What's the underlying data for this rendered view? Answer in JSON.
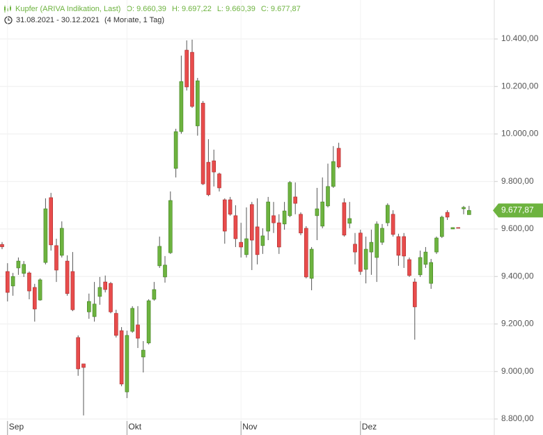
{
  "chart_data": {
    "type": "candlestick",
    "title": "Kupfer (ARIVA Indikation, Last)",
    "ohlc_labels": [
      "O: 9.660,39",
      "H: 9.697,22",
      "L: 9.660,39",
      "C: 9.677,87"
    ],
    "subtitle": "31.08.2021 - 30.12.2021",
    "period": "(4 Monate, 1 Tag)",
    "up_color": "#6db33f",
    "down_color": "#e84c4c",
    "open": [
      9535,
      9421,
      9360,
      9436,
      9413,
      9415,
      9354,
      9301,
      9459,
      9732,
      9530,
      9489,
      9465,
      9421,
      9143,
      9032,
      9251,
      9231,
      9316,
      9377,
      9371,
      9245,
      9172,
      8914,
      9169,
      9196,
      9061,
      9120,
      9304,
      9445,
      9398,
      9500,
      9855,
      10010,
      10353,
      10344,
      10034,
      10130,
      9881,
      9887,
      9832,
      9723,
      9723,
      9656,
      9544,
      9492,
      9703,
      9609,
      9530,
      9591,
      9656,
      9626,
      9621,
      9656,
      9735,
      9662,
      9603,
      9392,
      9656,
      9612,
      9697,
      9779,
      9940,
      9711,
      9624,
      9536,
      9583,
      9430,
      9503,
      9480,
      9544,
      9626,
      9662,
      9568,
      9568,
      9471,
      9377,
      9407,
      9451,
      9371,
      9503,
      9568,
      9670,
      9600,
      9606,
      9685,
      9660.39
    ],
    "high": [
      9545,
      9456,
      9415,
      9480,
      9465,
      9421,
      9369,
      9392,
      9729,
      9752,
      9559,
      9632,
      9489,
      9503,
      9152,
      9032,
      9328,
      9377,
      9398,
      9404,
      9377,
      9260,
      9187,
      9172,
      9275,
      9275,
      9128,
      9304,
      9377,
      9568,
      9486,
      9758,
      10022,
      10330,
      10394,
      10397,
      10236,
      10139,
      9978,
      9934,
      9837,
      9729,
      9735,
      9700,
      9626,
      9691,
      9714,
      9729,
      9603,
      9735,
      9714,
      9662,
      9714,
      9802,
      9796,
      9670,
      9612,
      9524,
      9773,
      9817,
      9875,
      9949,
      9963,
      9729,
      9714,
      9583,
      9597,
      9568,
      9597,
      9632,
      9621,
      9708,
      9679,
      9580,
      9583,
      9480,
      9392,
      9509,
      9524,
      9474,
      9568,
      9656,
      9679,
      9606,
      9606,
      9697,
      9697.22
    ],
    "low": [
      9515,
      9295,
      9319,
      9407,
      9398,
      9304,
      9210,
      9298,
      9451,
      9509,
      9377,
      9480,
      9319,
      9254,
      8982,
      8815,
      9222,
      9210,
      9281,
      9333,
      9245,
      9143,
      8938,
      8888,
      9163,
      9099,
      8996,
      9114,
      9298,
      9436,
      9374,
      9495,
      9817,
      10001,
      10183,
      10110,
      9993,
      9785,
      9738,
      9779,
      9758,
      9538,
      9656,
      9524,
      9480,
      9480,
      9427,
      9451,
      9495,
      9553,
      9583,
      9495,
      9597,
      9650,
      9662,
      9574,
      9392,
      9342,
      9553,
      9603,
      9691,
      9773,
      9855,
      9568,
      9603,
      9451,
      9407,
      9371,
      9407,
      9377,
      9533,
      9612,
      9568,
      9445,
      9436,
      9398,
      9134,
      9398,
      9436,
      9348,
      9495,
      9562,
      9638,
      9600,
      9603,
      9662,
      9660.39
    ],
    "close": [
      9525,
      9333,
      9400,
      9465,
      9451,
      9339,
      9263,
      9386,
      9685,
      9533,
      9427,
      9603,
      9328,
      9260,
      9011,
      9017,
      9295,
      9284,
      9354,
      9345,
      9251,
      9152,
      8947,
      9152,
      9266,
      9140,
      9090,
      9298,
      9345,
      9527,
      9448,
      9720,
      10010,
      10221,
      10198,
      10116,
      10224,
      9790,
      9744,
      9840,
      9773,
      9591,
      9662,
      9559,
      9524,
      9559,
      9553,
      9492,
      9571,
      9714,
      9626,
      9524,
      9676,
      9796,
      9708,
      9583,
      9398,
      9515,
      9685,
      9714,
      9779,
      9884,
      9861,
      9574,
      9644,
      9503,
      9421,
      9515,
      9544,
      9621,
      9603,
      9700,
      9577,
      9489,
      9486,
      9404,
      9272,
      9480,
      9503,
      9459,
      9562,
      9650,
      9650,
      9606,
      9603,
      9691,
      9677.87
    ],
    "xticks": [
      {
        "index": 1,
        "label": "Sep"
      },
      {
        "index": 23,
        "label": "Okt"
      },
      {
        "index": 44,
        "label": "Nov"
      },
      {
        "index": 66,
        "label": "Dez"
      }
    ],
    "ylim": [
      8800,
      10400
    ],
    "yticks": [
      {
        "value": 8800,
        "label": "8.800,00"
      },
      {
        "value": 9000,
        "label": "9.000,00"
      },
      {
        "value": 9200,
        "label": "9.200,00"
      },
      {
        "value": 9400,
        "label": "9.400,00"
      },
      {
        "value": 9600,
        "label": "9.600,00"
      },
      {
        "value": 9800,
        "label": "9.800,00"
      },
      {
        "value": 10000,
        "label": "10.000,00"
      },
      {
        "value": 10200,
        "label": "10.200,00"
      },
      {
        "value": 10400,
        "label": "10.400,00"
      }
    ],
    "last_price": {
      "value": 9677.87,
      "label": "9.677,87"
    },
    "grid": true
  }
}
